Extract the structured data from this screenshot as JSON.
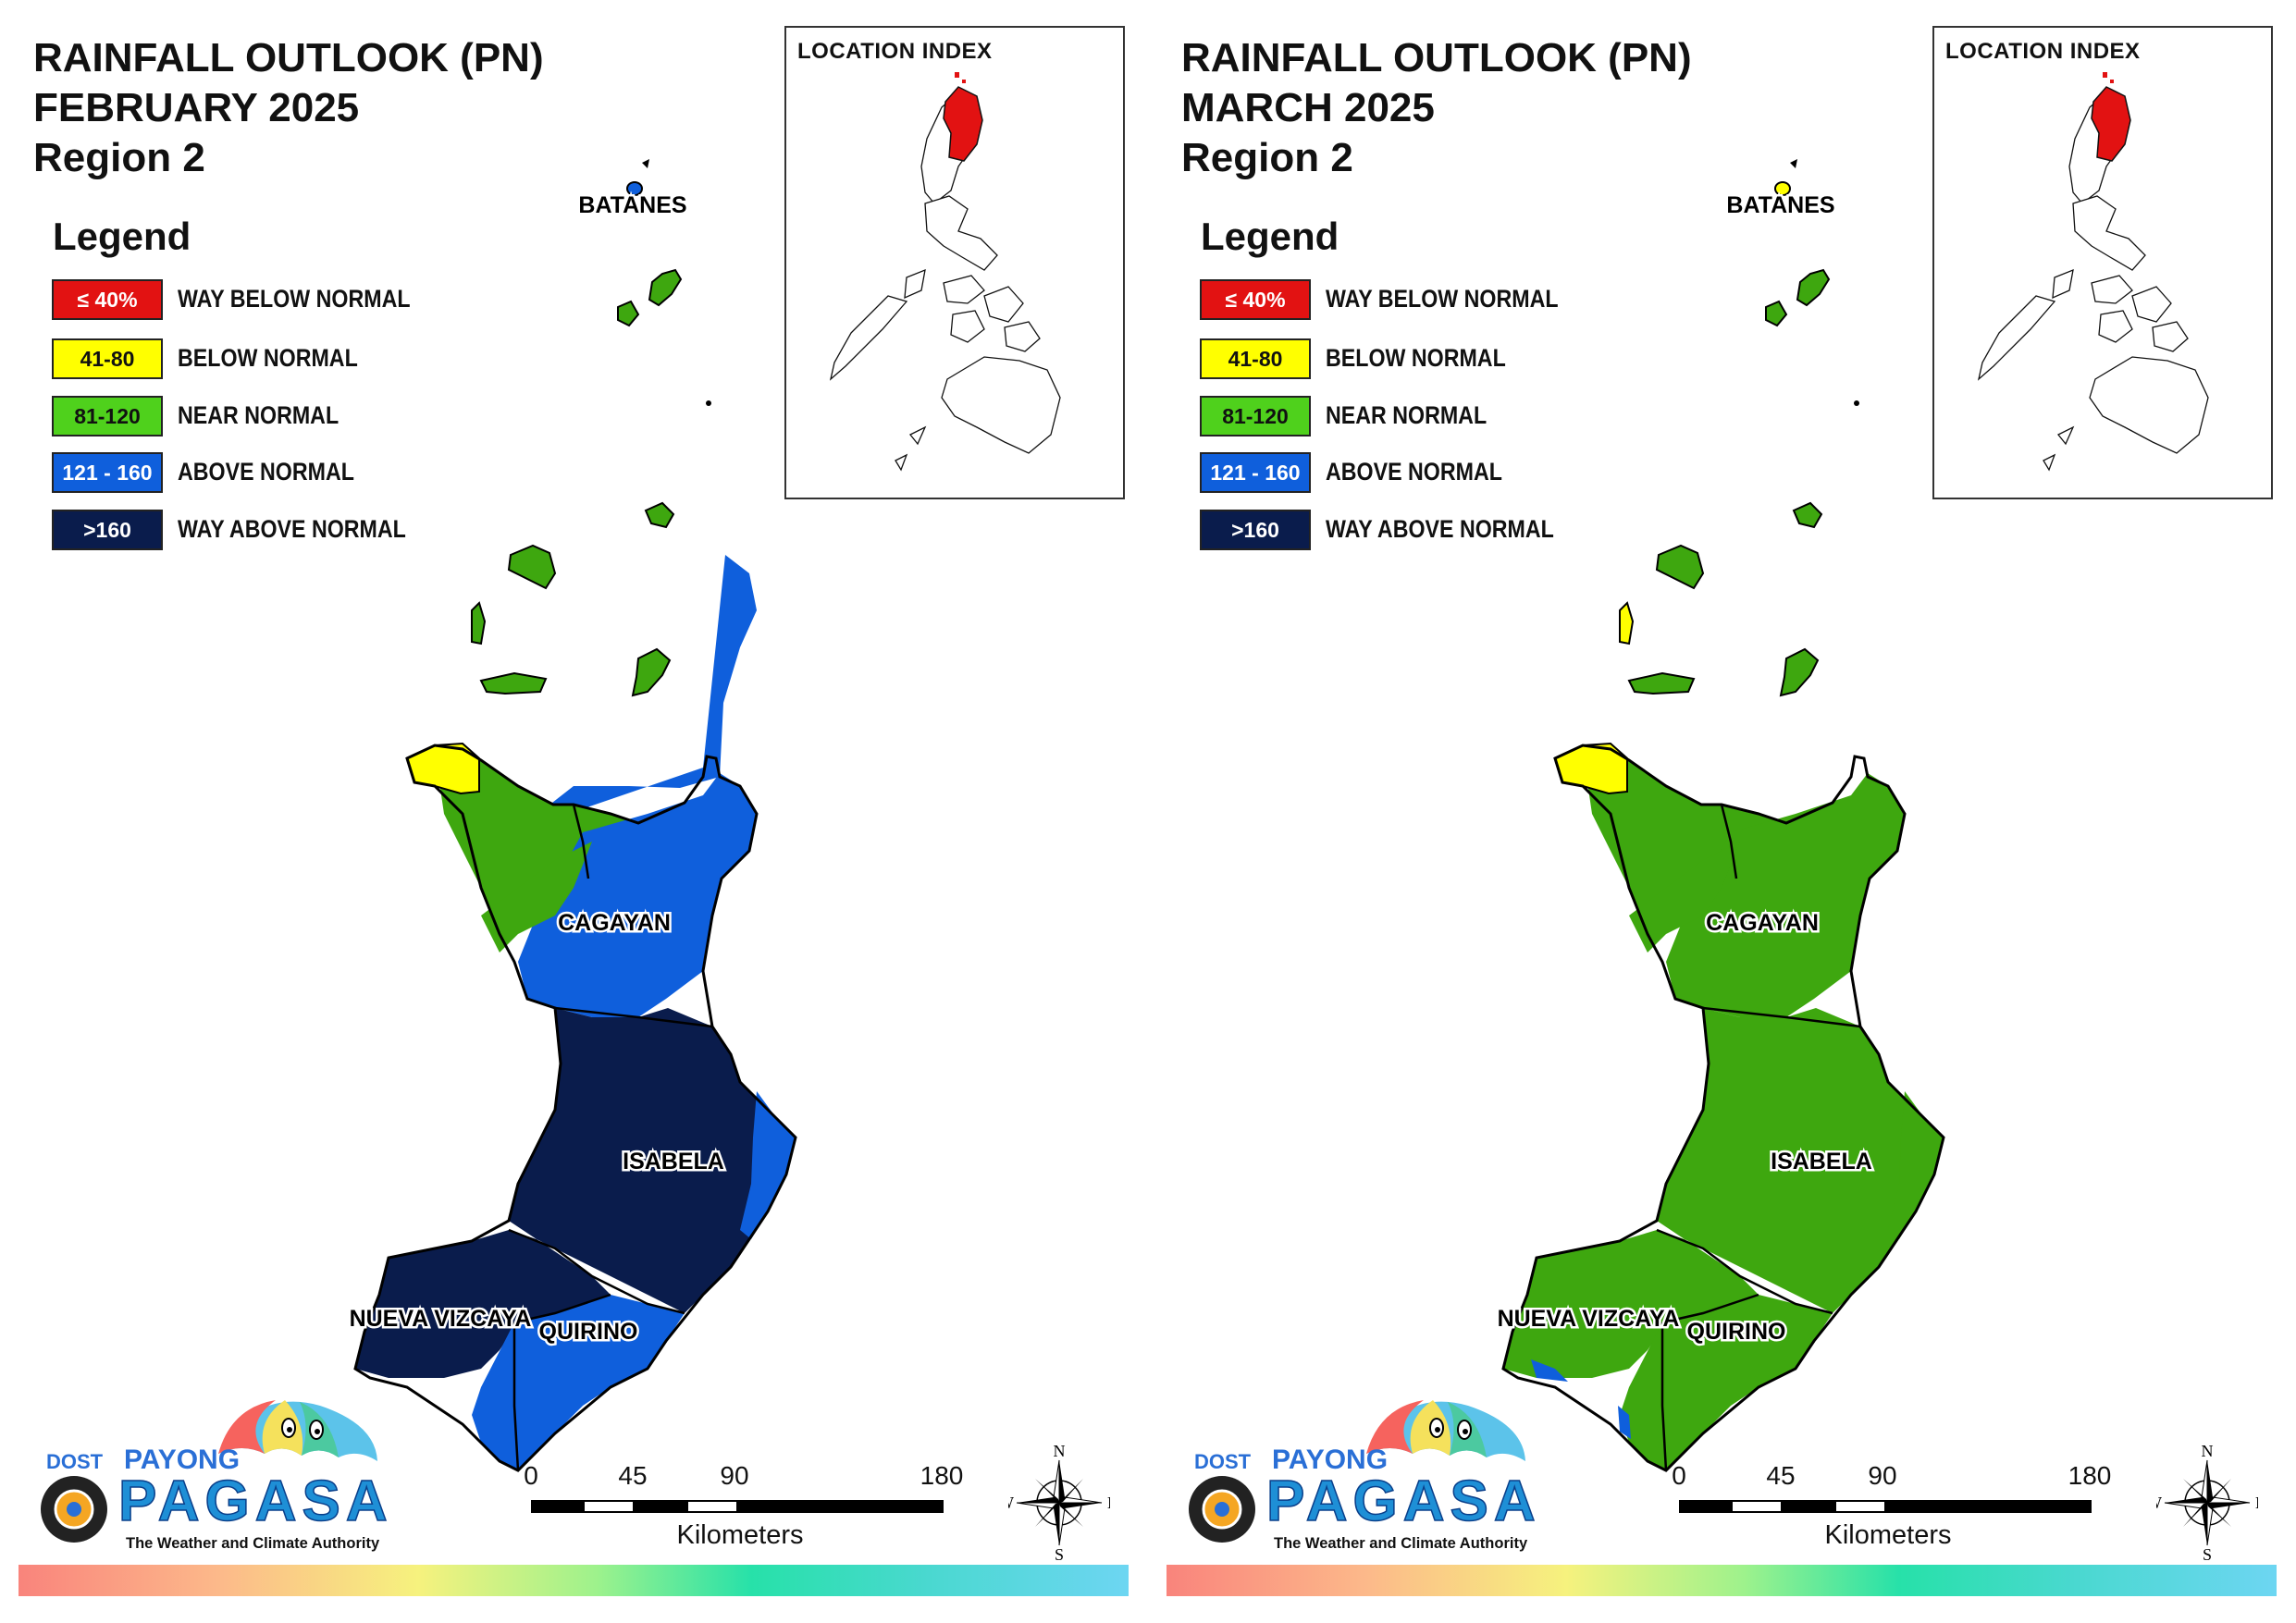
{
  "colors": {
    "way_below": "#e21212",
    "below": "#ffff00",
    "near": "#3ea70f",
    "near_swatch": "#4fd11c",
    "above": "#0f5fdc",
    "way_above": "#0a1c4c",
    "border": "#000000"
  },
  "panels": [
    {
      "title_line1": "RAINFALL OUTLOOK (PN)",
      "title_line2": "FEBRUARY 2025",
      "title_line3": "Region 2",
      "province_fill": {
        "batanes": "above",
        "islands": "near",
        "cagayan_north_west": "below",
        "cagayan_north": "near",
        "cagayan": "above",
        "isabela_core": "way_above",
        "isabela_coast": "above",
        "nueva_vizcaya": "way_above",
        "quirino": "above"
      }
    },
    {
      "title_line1": "RAINFALL OUTLOOK (PN)",
      "title_line2": "MARCH 2025",
      "title_line3": "Region 2",
      "province_fill": {
        "batanes": "below",
        "islands": "near",
        "cagayan_north_west": "below",
        "cagayan_north": "near",
        "cagayan": "near",
        "isabela_core": "near",
        "isabela_coast": "near",
        "nueva_vizcaya": "near",
        "quirino": "near"
      }
    }
  ],
  "legend": {
    "title": "Legend",
    "items": [
      {
        "range": "≤ 40%",
        "label": "WAY BELOW NORMAL",
        "color_key": "way_below",
        "text_color": "#ffffff"
      },
      {
        "range": "41-80",
        "label": "BELOW NORMAL",
        "color_key": "below",
        "text_color": "#111111"
      },
      {
        "range": "81-120",
        "label": "NEAR NORMAL",
        "color_key": "near_swatch",
        "text_color": "#111111"
      },
      {
        "range": "121 - 160",
        "label": "ABOVE NORMAL",
        "color_key": "above",
        "text_color": "#ffffff"
      },
      {
        "range": ">160",
        "label": "WAY ABOVE NORMAL",
        "color_key": "way_above",
        "text_color": "#ffffff"
      }
    ]
  },
  "inset": {
    "title": "LOCATION INDEX",
    "highlight_color": "#e21212"
  },
  "provinces": {
    "batanes": "BATANES",
    "cagayan": "CAGAYAN",
    "isabela": "ISABELA",
    "nueva_vizcaya": "NUEVA VIZCAYA",
    "quirino": "QUIRINO"
  },
  "scale": {
    "ticks": [
      "0",
      "45",
      "90",
      "180"
    ],
    "unit": "Kilometers"
  },
  "compass": {
    "n": "N",
    "s": "S",
    "e": "E",
    "w": "W"
  },
  "logo": {
    "dost": "DOST",
    "payong": "PAYONG",
    "pagasa": "PAGASA",
    "tagline": "The Weather and Climate Authority"
  }
}
